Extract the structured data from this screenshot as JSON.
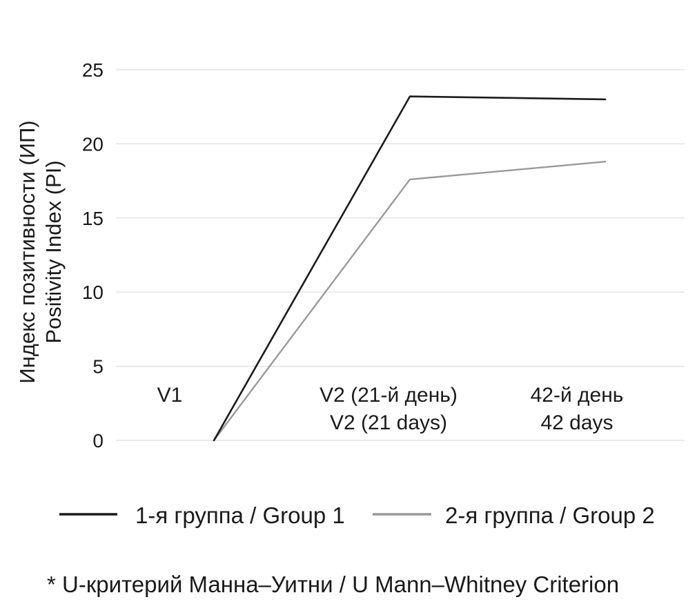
{
  "chart_data": {
    "type": "line",
    "categories": [
      {
        "line1": "V1",
        "line2": ""
      },
      {
        "line1": "V2 (21-й день)",
        "line2": "V2 (21 days)"
      },
      {
        "line1": "42-й день",
        "line2": "42 days"
      }
    ],
    "series": [
      {
        "name": "1-я группа / Group 1",
        "color": "#1a1a1a",
        "values": [
          0,
          23.2,
          23.0
        ]
      },
      {
        "name": "2-я группа / Group 2",
        "color": "#999999",
        "values": [
          0,
          17.6,
          18.8
        ]
      }
    ],
    "ylabel_line1": "Индекс позитивности (ИП)",
    "ylabel_line2": "Positivity Index (PI)",
    "ylim": [
      0,
      25
    ],
    "yticks": [
      "0",
      "5",
      "10",
      "15",
      "20",
      "25"
    ],
    "grid": true,
    "legend_position": "bottom",
    "footnote": "* U-критерий Манна–Уитни / U Mann–Whitney Criterion"
  }
}
